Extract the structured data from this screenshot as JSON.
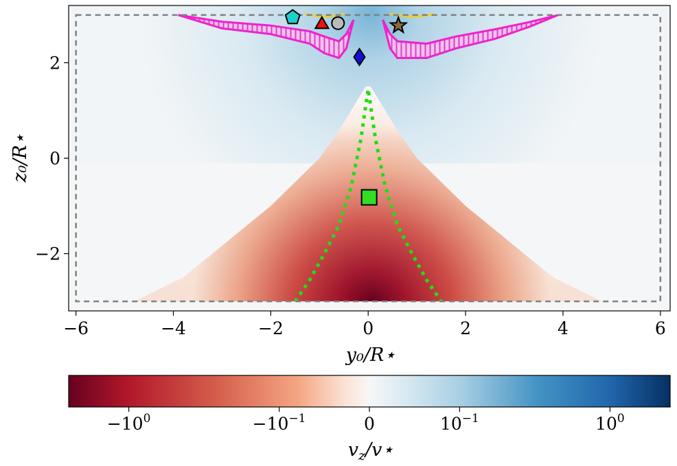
{
  "chart_data": {
    "type": "heatmap",
    "title": "",
    "xlabel": "y₀/R⋆",
    "ylabel": "z₀/R⋆",
    "xlim": [
      -6.15,
      6.2
    ],
    "ylim": [
      -3.2,
      3.2
    ],
    "xticks": [
      -6,
      -4,
      -2,
      0,
      2,
      4,
      6
    ],
    "yticks": [
      -2,
      0,
      2
    ],
    "xtick_labels": [
      "−6",
      "−4",
      "−2",
      "0",
      "2",
      "4",
      "6"
    ],
    "ytick_labels": [
      "−2",
      "0",
      "2"
    ],
    "box": {
      "y_range": [
        -6,
        6
      ],
      "z_range": [
        -3,
        3
      ],
      "style": "gray dashed"
    },
    "outflow_red_region_edge": {
      "z": [
        -3.0,
        -2.5,
        -2.0,
        -1.0,
        0.0,
        0.5,
        1.0,
        1.5
      ],
      "y_half": [
        4.8,
        3.8,
        3.2,
        2.0,
        1.0,
        0.65,
        0.35,
        0.05
      ]
    },
    "green_dotted_curve": {
      "y": [
        -1.5,
        -1.2,
        -0.9,
        -0.6,
        -0.35,
        -0.15,
        0.0,
        0.15,
        0.35,
        0.6,
        0.9,
        1.2,
        1.5
      ],
      "z": [
        -3.0,
        -2.55,
        -2.0,
        -1.4,
        -0.6,
        0.4,
        1.45,
        0.4,
        -0.6,
        -1.4,
        -2.0,
        -2.55,
        -3.0
      ],
      "color": "#22dd11"
    },
    "magenta_contours": [
      {
        "side": "left",
        "outer": [
          [
            -3.9,
            3.0
          ],
          [
            -3.0,
            2.72
          ],
          [
            -2.0,
            2.6
          ],
          [
            -1.2,
            2.4
          ],
          [
            -0.9,
            2.2
          ],
          [
            -0.6,
            2.1
          ],
          [
            -0.45,
            2.3
          ],
          [
            -0.3,
            2.9
          ]
        ],
        "inner": [
          [
            -3.9,
            3.0
          ],
          [
            -3.0,
            2.86
          ],
          [
            -2.0,
            2.78
          ],
          [
            -1.2,
            2.66
          ],
          [
            -0.9,
            2.55
          ],
          [
            -0.6,
            2.45
          ],
          [
            -0.45,
            2.6
          ],
          [
            -0.3,
            2.9
          ]
        ]
      },
      {
        "side": "right",
        "outer": [
          [
            0.3,
            2.9
          ],
          [
            0.45,
            2.3
          ],
          [
            0.6,
            2.1
          ],
          [
            1.2,
            2.1
          ],
          [
            1.8,
            2.3
          ],
          [
            2.6,
            2.5
          ],
          [
            3.3,
            2.75
          ],
          [
            3.9,
            3.0
          ]
        ],
        "inner": [
          [
            0.3,
            2.9
          ],
          [
            0.45,
            2.6
          ],
          [
            0.6,
            2.45
          ],
          [
            1.2,
            2.4
          ],
          [
            1.8,
            2.55
          ],
          [
            2.6,
            2.7
          ],
          [
            3.3,
            2.85
          ],
          [
            3.9,
            3.0
          ]
        ]
      }
    ],
    "markers": [
      {
        "shape": "pentagon",
        "color": "#1ccfcf",
        "y": -1.55,
        "z": 2.95
      },
      {
        "shape": "triangle",
        "color": "#ee1111",
        "y": -0.95,
        "z": 2.8
      },
      {
        "shape": "circle",
        "color": "#bbbbbb",
        "y": -0.62,
        "z": 2.83
      },
      {
        "shape": "star",
        "color": "#8b6a3a",
        "y": 0.62,
        "z": 2.78
      },
      {
        "shape": "diamond",
        "color": "#1010dd",
        "y": -0.18,
        "z": 2.12
      },
      {
        "shape": "square",
        "color": "#33dd22",
        "y": 0.02,
        "z": -0.82
      }
    ],
    "colorbar": {
      "label": "v_z/v⋆",
      "label_main": "v",
      "label_sub": "z",
      "label_rest": "/v⋆",
      "scale": "symlog",
      "colormap": "RdBu",
      "ticks": [
        {
          "position": 0.1,
          "base": "−10",
          "exp": "0"
        },
        {
          "position": 0.35,
          "base": "−10",
          "exp": "−1"
        },
        {
          "position": 0.5,
          "base": "0",
          "exp": ""
        },
        {
          "position": 0.65,
          "base": "10",
          "exp": "−1"
        },
        {
          "position": 0.9,
          "base": "10",
          "exp": "0"
        }
      ]
    }
  }
}
